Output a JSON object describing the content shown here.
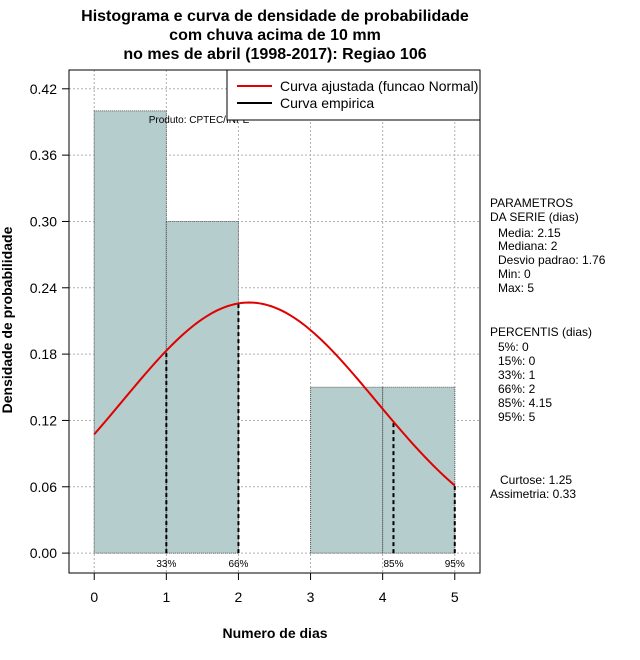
{
  "chart_data": {
    "type": "bar",
    "title": [
      "Histograma e curva de densidade de probabilidade",
      "com chuva acima de 10 mm",
      "no mes de abril (1998-2017): Regiao 106"
    ],
    "xlabel": "Numero de dias",
    "ylabel": "Densidade de probabilidade",
    "xlim": [
      -0.35,
      5.35
    ],
    "ylim": [
      -0.018,
      0.437
    ],
    "x_ticks": [
      0,
      1,
      2,
      3,
      4,
      5
    ],
    "y_ticks": [
      0.0,
      0.06,
      0.12,
      0.18,
      0.24,
      0.3,
      0.36,
      0.42
    ],
    "y_tick_labels": [
      "0.00",
      "0.06",
      "0.12",
      "0.18",
      "0.24",
      "0.30",
      "0.36",
      "0.42"
    ],
    "grid": true,
    "bins": [
      {
        "from": 0,
        "to": 1,
        "density": 0.4
      },
      {
        "from": 1,
        "to": 2,
        "density": 0.3
      },
      {
        "from": 2,
        "to": 3,
        "density": 0.0
      },
      {
        "from": 3,
        "to": 4,
        "density": 0.15
      },
      {
        "from": 4,
        "to": 5,
        "density": 0.15
      }
    ],
    "normal_fit": {
      "mean": 2.15,
      "sd": 1.76,
      "x_from": 0,
      "x_to": 5
    },
    "percentile_markers": [
      {
        "label": "33%",
        "x": 1
      },
      {
        "label": "66%",
        "x": 2
      },
      {
        "label": "85%",
        "x": 4.15
      },
      {
        "label": "95%",
        "x": 5
      }
    ],
    "legend": [
      {
        "label": "Curva ajustada (funcao Normal)",
        "color": "#e00000"
      },
      {
        "label": "Curva empirica",
        "color": "#000000"
      }
    ],
    "annotation_product": "Produto: CPTEC/INPE",
    "bar_color": "#b5cdcd",
    "curve_color": "#e00000"
  },
  "side_panel": {
    "params_title": [
      "PARAMETROS",
      "DA SERIE (dias)"
    ],
    "params": [
      "Media: 2.15",
      "Mediana: 2",
      "Desvio padrao: 1.76",
      "Min: 0",
      "Max: 5"
    ],
    "percentis_title": "PERCENTIS (dias)",
    "percentis": [
      "5%: 0",
      "15%: 0",
      "33%: 1",
      "66%: 2",
      "85%: 4.15",
      "95%: 5"
    ],
    "stats": [
      "Curtose: 1.25",
      "Assimetria: 0.33"
    ]
  }
}
